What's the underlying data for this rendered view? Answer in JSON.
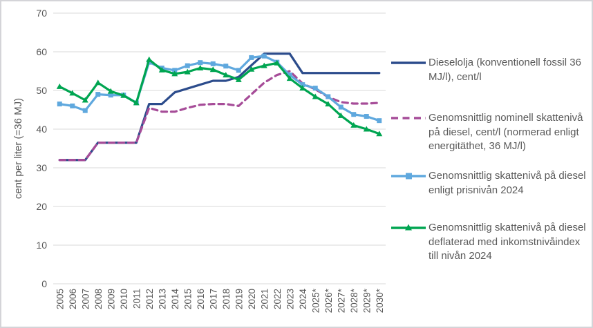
{
  "chart_data": {
    "type": "line",
    "title": "",
    "xlabel": "",
    "ylabel": "cent per liter (=36 MJ)",
    "ylim": [
      0,
      70
    ],
    "y_ticks": [
      0,
      10,
      20,
      30,
      40,
      50,
      60,
      70
    ],
    "grid": true,
    "legend_position": "right",
    "categories": [
      "2005",
      "2006",
      "2007",
      "2008",
      "2009",
      "2010",
      "2011",
      "2012",
      "2013",
      "2014",
      "2015",
      "2016",
      "2017",
      "2018",
      "2019",
      "2020",
      "2021",
      "2022",
      "2023",
      "2024",
      "2025*",
      "2026*",
      "2027*",
      "2028*",
      "2029*",
      "2030*"
    ],
    "series": [
      {
        "name": "Dieselolja (konventionell fossil 36 MJ/l), cent/l",
        "color": "#2C4C8C",
        "style": "solid",
        "marker": "none",
        "values": [
          32,
          32,
          32,
          36.5,
          36.5,
          36.5,
          36.5,
          46.5,
          46.5,
          49.5,
          50.5,
          51.5,
          52.5,
          52.5,
          53.5,
          56.5,
          59.5,
          59.5,
          59.5,
          54.5,
          54.5,
          54.5,
          54.5,
          54.5,
          54.5,
          54.5
        ]
      },
      {
        "name": "Genomsnittlig nominell skattenivå på diesel, cent/l (normerad enligt energitäthet, 36 MJ/l)",
        "color": "#A64C98",
        "style": "dashed",
        "marker": "none",
        "values": [
          32,
          32,
          32,
          36.5,
          36.5,
          36.5,
          36.5,
          45.5,
          44.5,
          44.5,
          45.5,
          46.3,
          46.5,
          46.5,
          46,
          49,
          52,
          54,
          55,
          51.8,
          50.3,
          48.3,
          47,
          46.6,
          46.6,
          46.8
        ]
      },
      {
        "name": "Genomsnittlig skattenivå på diesel enligt prisnivån 2024",
        "color": "#5FA8DE",
        "style": "solid",
        "marker": "square",
        "values": [
          46.5,
          46,
          44.8,
          49,
          48.8,
          48.8,
          46.8,
          57.3,
          55.8,
          55.2,
          56.4,
          57.2,
          56.9,
          56.3,
          55.2,
          58.5,
          58.9,
          57.3,
          54,
          51.5,
          50.6,
          48.4,
          45.7,
          43.8,
          43.3,
          42.2
        ]
      },
      {
        "name": "Genomsnittlig skattenivå på diesel deflaterad med inkomstnivåindex till nivån 2024",
        "color": "#00A551",
        "style": "solid",
        "marker": "triangle",
        "values": [
          51,
          49.3,
          47.5,
          52,
          49.8,
          48.7,
          46.8,
          58,
          55.3,
          54.3,
          54.8,
          55.8,
          55.4,
          54,
          52.8,
          55.5,
          56.4,
          57.1,
          53.1,
          50.6,
          48.4,
          46.5,
          43.5,
          41,
          40,
          38.8
        ]
      }
    ],
    "colors": {
      "gridline": "#D9D9D9",
      "axis_text": "#595959",
      "background": "#FFFFFF"
    }
  }
}
